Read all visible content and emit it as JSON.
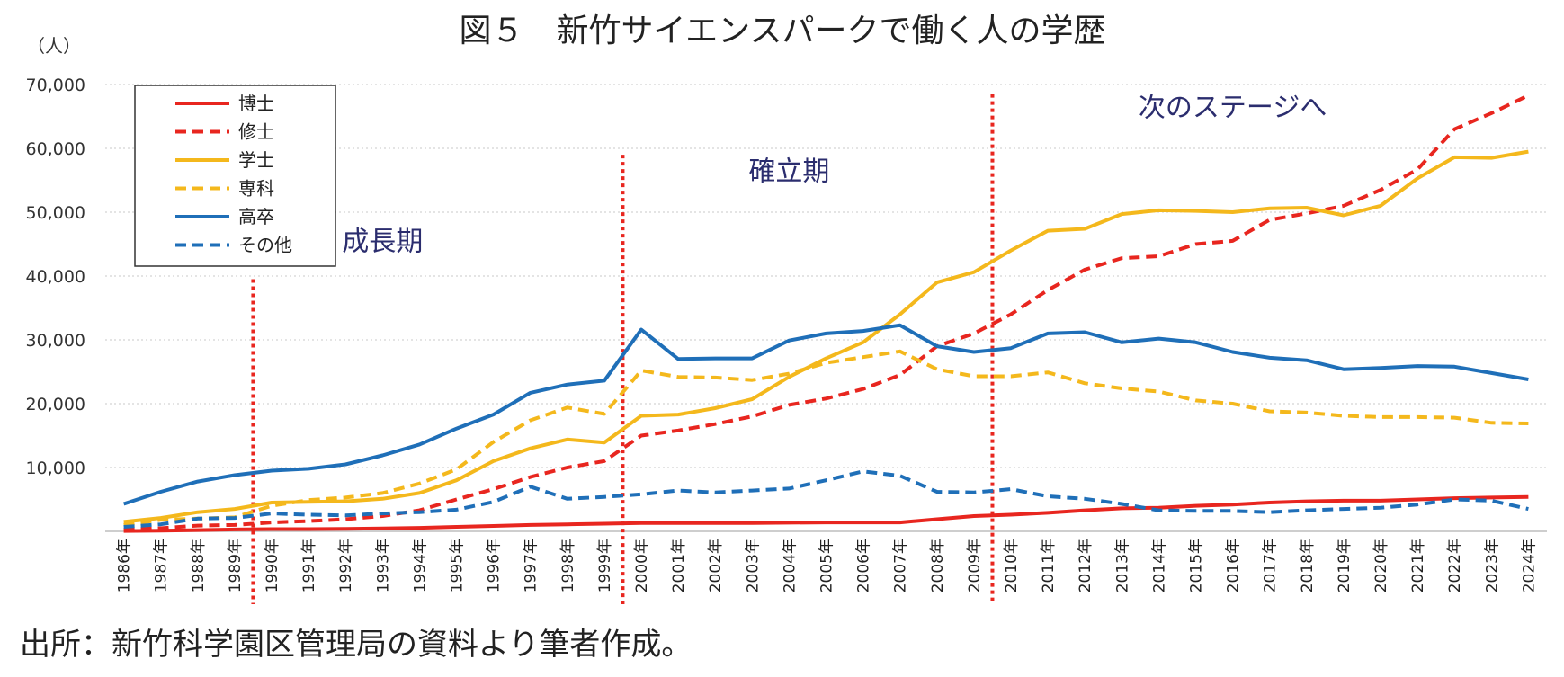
{
  "chart_data": {
    "type": "line",
    "title": "図５　新竹サイエンスパークで働く人の学歴",
    "unit_label": "（人）",
    "xlabel": "",
    "ylabel": "",
    "ylim": [
      0,
      70000
    ],
    "yticks": [
      "70,000",
      "60,000",
      "50,000",
      "40,000",
      "30,000",
      "20,000",
      "10,000"
    ],
    "ytick_values": [
      70000,
      60000,
      50000,
      40000,
      30000,
      20000,
      10000
    ],
    "grid": "horizontal dotted",
    "legend_position": "top-left",
    "categories": [
      "1986年",
      "1987年",
      "1988年",
      "1989年",
      "1990年",
      "1991年",
      "1992年",
      "1993年",
      "1994年",
      "1995年",
      "1996年",
      "1997年",
      "1998年",
      "1999年",
      "2000年",
      "2001年",
      "2002年",
      "2003年",
      "2004年",
      "2005年",
      "2006年",
      "2007年",
      "2008年",
      "2009年",
      "2010年",
      "2011年",
      "2012年",
      "2013年",
      "2014年",
      "2015年",
      "2016年",
      "2017年",
      "2018年",
      "2019年",
      "2020年",
      "2021年",
      "2022年",
      "2023年",
      "2024年"
    ],
    "series": [
      {
        "name": "博士",
        "color": "#e8261f",
        "dash": false,
        "values": [
          50,
          100,
          200,
          300,
          350,
          350,
          400,
          450,
          550,
          700,
          850,
          1000,
          1100,
          1200,
          1300,
          1300,
          1300,
          1300,
          1350,
          1400,
          1400,
          1400,
          1900,
          2400,
          2600,
          2900,
          3300,
          3600,
          3700,
          4000,
          4200,
          4500,
          4700,
          4800,
          4800,
          5000,
          5200,
          5300,
          5400
        ]
      },
      {
        "name": "修士",
        "color": "#e8261f",
        "dash": true,
        "values": [
          300,
          500,
          900,
          1000,
          1400,
          1600,
          1900,
          2400,
          3300,
          5000,
          6600,
          8500,
          10000,
          11000,
          15000,
          15800,
          16800,
          18000,
          19800,
          20800,
          22300,
          24500,
          29000,
          31000,
          34000,
          37800,
          41000,
          42800,
          43100,
          45000,
          45500,
          48800,
          49800,
          51000,
          53500,
          56700,
          63000,
          65500,
          68300
        ]
      },
      {
        "name": "学士",
        "color": "#f4b81c",
        "dash": false,
        "values": [
          1500,
          2100,
          3000,
          3500,
          4500,
          4600,
          4700,
          5100,
          6000,
          8000,
          11000,
          13000,
          14400,
          13900,
          18100,
          18300,
          19300,
          20700,
          24200,
          27100,
          29600,
          34000,
          39000,
          40600,
          44000,
          47100,
          47400,
          49700,
          50300,
          50200,
          50000,
          50600,
          50700,
          49500,
          51000,
          55300,
          58600,
          58500,
          59500
        ]
      },
      {
        "name": "専科",
        "color": "#f4b81c",
        "dash": true,
        "values": [
          1000,
          1800,
          2000,
          2200,
          4000,
          4900,
          5300,
          6000,
          7500,
          9700,
          14000,
          17400,
          19400,
          18400,
          25200,
          24200,
          24100,
          23700,
          24700,
          26400,
          27300,
          28200,
          25400,
          24300,
          24300,
          24900,
          23200,
          22400,
          21900,
          20500,
          20000,
          18800,
          18600,
          18100,
          17900,
          17900,
          17800,
          17000,
          16900
        ]
      },
      {
        "name": "高卒",
        "color": "#1f6fb8",
        "dash": false,
        "values": [
          4300,
          6200,
          7800,
          8800,
          9500,
          9800,
          10500,
          11900,
          13600,
          16100,
          18300,
          21700,
          23000,
          23600,
          31600,
          27000,
          27100,
          27100,
          29900,
          31000,
          31400,
          32300,
          29000,
          28100,
          28700,
          31000,
          31200,
          29600,
          30200,
          29600,
          28100,
          27200,
          26800,
          25400,
          25600,
          25900,
          25800,
          24800,
          23800
        ]
      },
      {
        "name": "その他",
        "color": "#1f6fb8",
        "dash": true,
        "values": [
          700,
          1100,
          2000,
          2100,
          2800,
          2600,
          2500,
          2800,
          3000,
          3400,
          4600,
          7000,
          5100,
          5400,
          5800,
          6400,
          6100,
          6400,
          6700,
          8000,
          9400,
          8700,
          6200,
          6100,
          6600,
          5500,
          5100,
          4300,
          3300,
          3200,
          3200,
          3000,
          3300,
          3500,
          3700,
          4200,
          5000,
          4800,
          3500
        ]
      }
    ],
    "annotations": [
      {
        "text": "成長期",
        "x": "1993年",
        "y": 44000
      },
      {
        "text": "確立期",
        "x": "2004年",
        "y": 55000
      },
      {
        "text": "次のステージへ",
        "x": "2016年",
        "y": 65000
      }
    ],
    "phase_dividers": [
      {
        "after": "1989年",
        "ymax": 39500
      },
      {
        "after": "1999年",
        "ymax": 59000
      },
      {
        "after": "2009年",
        "ymax": 68500
      }
    ]
  },
  "source_note": "出所：新竹科学園区管理局の資料より筆者作成。"
}
